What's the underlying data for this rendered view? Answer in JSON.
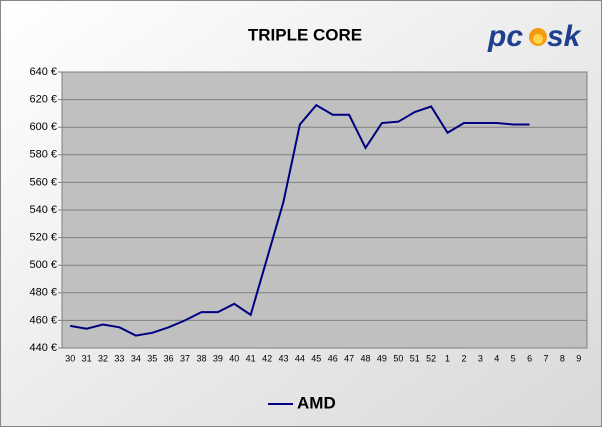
{
  "chart_data": {
    "type": "line",
    "title": "TRIPLE CORE",
    "logo": [
      "pc",
      "sk"
    ],
    "categories": [
      "30",
      "31",
      "32",
      "33",
      "34",
      "35",
      "36",
      "37",
      "38",
      "39",
      "40",
      "41",
      "42",
      "43",
      "44",
      "45",
      "46",
      "47",
      "48",
      "49",
      "50",
      "51",
      "52",
      "1",
      "2",
      "3",
      "4",
      "5",
      "6",
      "7",
      "8",
      "9"
    ],
    "series": [
      {
        "name": "AMD",
        "color": "#000080",
        "values": [
          456,
          454,
          457,
          455,
          449,
          451,
          455,
          460,
          466,
          466,
          472,
          464,
          505,
          546,
          602,
          616,
          609,
          609,
          585,
          603,
          604,
          611,
          615,
          596,
          603,
          603,
          603,
          602,
          602,
          null,
          null,
          null
        ]
      }
    ],
    "ylim": [
      440,
      640
    ],
    "yticks": [
      {
        "value": 440,
        "label": "440 €"
      },
      {
        "value": 460,
        "label": "460 €"
      },
      {
        "value": 480,
        "label": "480 €"
      },
      {
        "value": 500,
        "label": "500 €"
      },
      {
        "value": 520,
        "label": "520 €"
      },
      {
        "value": 540,
        "label": "540 €"
      },
      {
        "value": 560,
        "label": "560 €"
      },
      {
        "value": 580,
        "label": "580 €"
      },
      {
        "value": 600,
        "label": "600 €"
      },
      {
        "value": 620,
        "label": "620 €"
      },
      {
        "value": 640,
        "label": "640 €"
      }
    ],
    "grid": true,
    "legend": "bottom"
  }
}
